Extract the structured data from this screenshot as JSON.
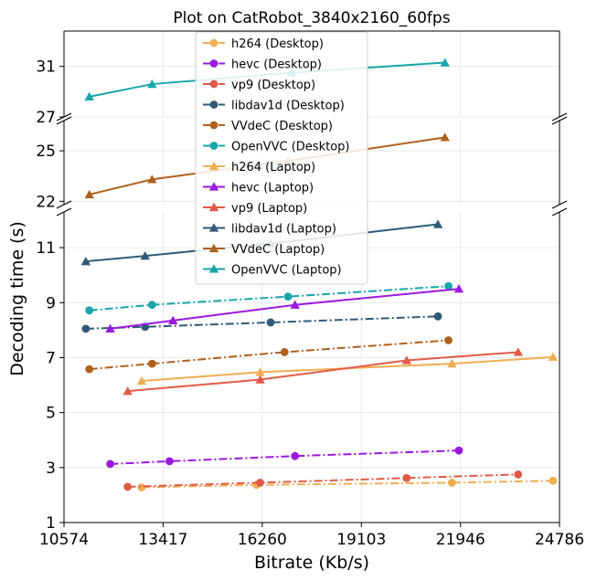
{
  "chart_data": {
    "type": "line",
    "title": "Plot on CatRobot_3840x2160_60fps",
    "xlabel": "Bitrate (Kb/s)",
    "ylabel": "Decoding time (s)",
    "xlim": [
      10574,
      24786
    ],
    "x_ticks": [
      "10574",
      "13417",
      "16260",
      "19103",
      "21946",
      "24786"
    ],
    "grid": true,
    "legend_position": "top-center",
    "panels": [
      {
        "id": "top",
        "ylim": [
          27,
          33.8
        ],
        "y_ticks": [
          "27",
          "31"
        ]
      },
      {
        "id": "middle",
        "ylim": [
          21.8,
          26.8
        ],
        "y_ticks": [
          "22",
          "25"
        ]
      },
      {
        "id": "bottom",
        "ylim": [
          1,
          12.3
        ],
        "y_ticks": [
          "1",
          "3",
          "5",
          "7",
          "9",
          "11"
        ]
      }
    ],
    "series": [
      {
        "name": "h264 (Desktop)",
        "color": "#f0ad52",
        "marker": "circle",
        "dash": "dashdot",
        "panel": "bottom",
        "x": [
          12800,
          16100,
          21700,
          24600
        ],
        "y": [
          2.28,
          2.37,
          2.45,
          2.52
        ]
      },
      {
        "name": "hevc (Desktop)",
        "color": "#9b19e0",
        "marker": "circle",
        "dash": "dashdot",
        "panel": "bottom",
        "x": [
          11900,
          13600,
          17200,
          21900
        ],
        "y": [
          3.13,
          3.23,
          3.42,
          3.62
        ]
      },
      {
        "name": "vp9 (Desktop)",
        "color": "#e05a47",
        "marker": "circle",
        "dash": "dashdot",
        "panel": "bottom",
        "x": [
          12400,
          16200,
          20400,
          23600
        ],
        "y": [
          2.3,
          2.45,
          2.62,
          2.75
        ]
      },
      {
        "name": "libdav1d (Desktop)",
        "color": "#2e5a78",
        "marker": "circle",
        "dash": "dashdot",
        "panel": "bottom",
        "x": [
          11200,
          12900,
          16500,
          21300
        ],
        "y": [
          8.05,
          8.12,
          8.28,
          8.5
        ]
      },
      {
        "name": "VVdeC (Desktop)",
        "color": "#b0601e",
        "marker": "circle",
        "dash": "dashdot",
        "panel": "bottom",
        "x": [
          11300,
          13100,
          16900,
          21600
        ],
        "y": [
          6.58,
          6.78,
          7.2,
          7.63
        ]
      },
      {
        "name": "OpenVVC (Desktop)",
        "color": "#17a6aa",
        "marker": "circle",
        "dash": "dashdot",
        "panel": "bottom",
        "x": [
          11300,
          13100,
          17000,
          21600
        ],
        "y": [
          8.72,
          8.92,
          9.22,
          9.6
        ]
      },
      {
        "name": "h264 (Laptop)",
        "color": "#f0ad52",
        "marker": "triangle",
        "dash": "solid",
        "panel": "bottom",
        "x": [
          12800,
          16200,
          21700,
          24600
        ],
        "y": [
          6.15,
          6.47,
          6.78,
          7.02
        ]
      },
      {
        "name": "hevc (Laptop)",
        "color": "#9b19e0",
        "marker": "triangle",
        "dash": "solid",
        "panel": "bottom",
        "x": [
          11900,
          13700,
          17200,
          21900
        ],
        "y": [
          8.05,
          8.35,
          8.92,
          9.5
        ]
      },
      {
        "name": "vp9 (Laptop)",
        "color": "#e05a47",
        "marker": "triangle",
        "dash": "solid",
        "panel": "bottom",
        "x": [
          12400,
          16200,
          20400,
          23600
        ],
        "y": [
          5.78,
          6.2,
          6.9,
          7.2
        ]
      },
      {
        "name": "libdav1d (Laptop)",
        "color": "#2e5a78",
        "marker": "triangle",
        "dash": "solid",
        "panel": "bottom",
        "x": [
          11200,
          12900,
          16500,
          21300
        ],
        "y": [
          10.5,
          10.7,
          11.15,
          11.85
        ]
      },
      {
        "name": "VVdeC (Laptop)",
        "color": "#b0601e",
        "marker": "triangle",
        "dash": "solid",
        "panel": "middle",
        "x": [
          11300,
          13100,
          17000,
          21500
        ],
        "y": [
          22.4,
          23.3,
          24.4,
          25.8
        ]
      },
      {
        "name": "OpenVVC (Laptop)",
        "color": "#17a6aa",
        "marker": "triangle",
        "dash": "solid",
        "panel": "top",
        "x": [
          11300,
          13100,
          17100,
          21500
        ],
        "y": [
          28.6,
          29.6,
          30.5,
          31.3
        ]
      }
    ]
  }
}
